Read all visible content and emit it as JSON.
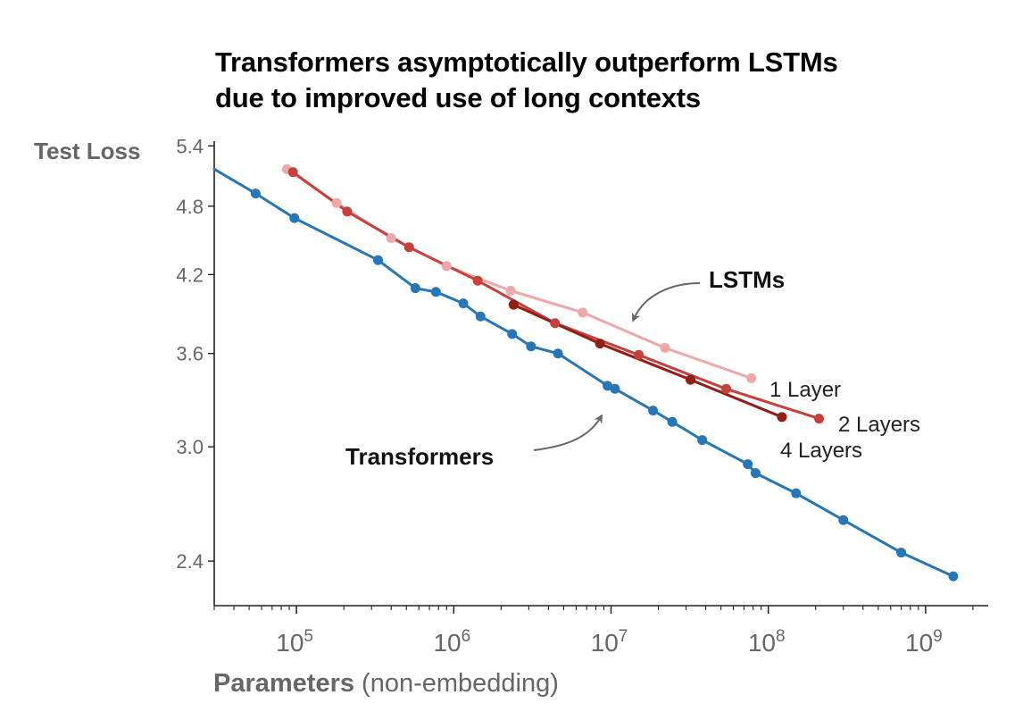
{
  "chart_data": {
    "type": "line",
    "title_lines": [
      "Transformers asymptotically outperform LSTMs",
      "due to improved use of long contexts"
    ],
    "xlabel": {
      "bold": "Parameters",
      "rest": " (non-embedding)"
    },
    "ylabel": "Test Loss",
    "xscale": "log",
    "yscale": "log",
    "xlim": [
      30000,
      2500000000
    ],
    "ylim": [
      2.2,
      5.45
    ],
    "x_decades": [
      100000,
      1000000,
      10000000,
      100000000,
      1000000000
    ],
    "x_tick_labels": [
      {
        "base": "10",
        "exp": "5"
      },
      {
        "base": "10",
        "exp": "6"
      },
      {
        "base": "10",
        "exp": "7"
      },
      {
        "base": "10",
        "exp": "8"
      },
      {
        "base": "10",
        "exp": "9"
      }
    ],
    "y_ticks": [
      2.4,
      3.0,
      3.6,
      4.2,
      4.8,
      5.4
    ],
    "y_tick_labels": [
      "2.4",
      "3.0",
      "3.6",
      "4.2",
      "4.8",
      "5.4"
    ],
    "grid": false,
    "series": [
      {
        "name": "Transformers",
        "color": "#2677b8",
        "x_start_line": 30000,
        "y_start_line": 5.16,
        "x": [
          55000,
          97000,
          330000,
          570000,
          770000,
          1150000,
          1480000,
          2350000,
          3100000,
          4600000,
          9500000,
          10600000,
          18500000,
          24500000,
          38000000,
          74000000,
          83000000,
          150000000,
          300000000,
          700000000,
          1500000000
        ],
        "y": [
          4.92,
          4.69,
          4.32,
          4.09,
          4.06,
          3.97,
          3.87,
          3.74,
          3.65,
          3.6,
          3.38,
          3.36,
          3.22,
          3.15,
          3.04,
          2.9,
          2.85,
          2.74,
          2.6,
          2.44,
          2.33
        ]
      },
      {
        "name": "1 Layer",
        "color": "#efa8a8",
        "x": [
          87000,
          180000,
          400000,
          900000,
          2300000,
          6600000,
          22000000,
          78000000
        ],
        "y": [
          5.16,
          4.83,
          4.51,
          4.27,
          4.07,
          3.9,
          3.64,
          3.43
        ]
      },
      {
        "name": "2 Layers",
        "color": "#c8403b",
        "x": [
          95000,
          210000,
          520000,
          1420000,
          4400000,
          15000000,
          54000000,
          210000000
        ],
        "y": [
          5.13,
          4.75,
          4.43,
          4.15,
          3.82,
          3.59,
          3.36,
          3.17
        ]
      },
      {
        "name": "4 Layers",
        "color": "#8e2018",
        "x": [
          2400000,
          8500000,
          32000000,
          122000000
        ],
        "y": [
          3.96,
          3.67,
          3.42,
          3.18
        ]
      }
    ],
    "series_labels": [
      {
        "text": "1 Layer"
      },
      {
        "text": "2 Layers"
      },
      {
        "text": "4 Layers"
      }
    ],
    "annotations": [
      {
        "text": "LSTMs"
      },
      {
        "text": "Transformers"
      }
    ]
  },
  "colors": {
    "axis": "#222222",
    "arrow": "#666666",
    "tick_text": "#666666"
  }
}
